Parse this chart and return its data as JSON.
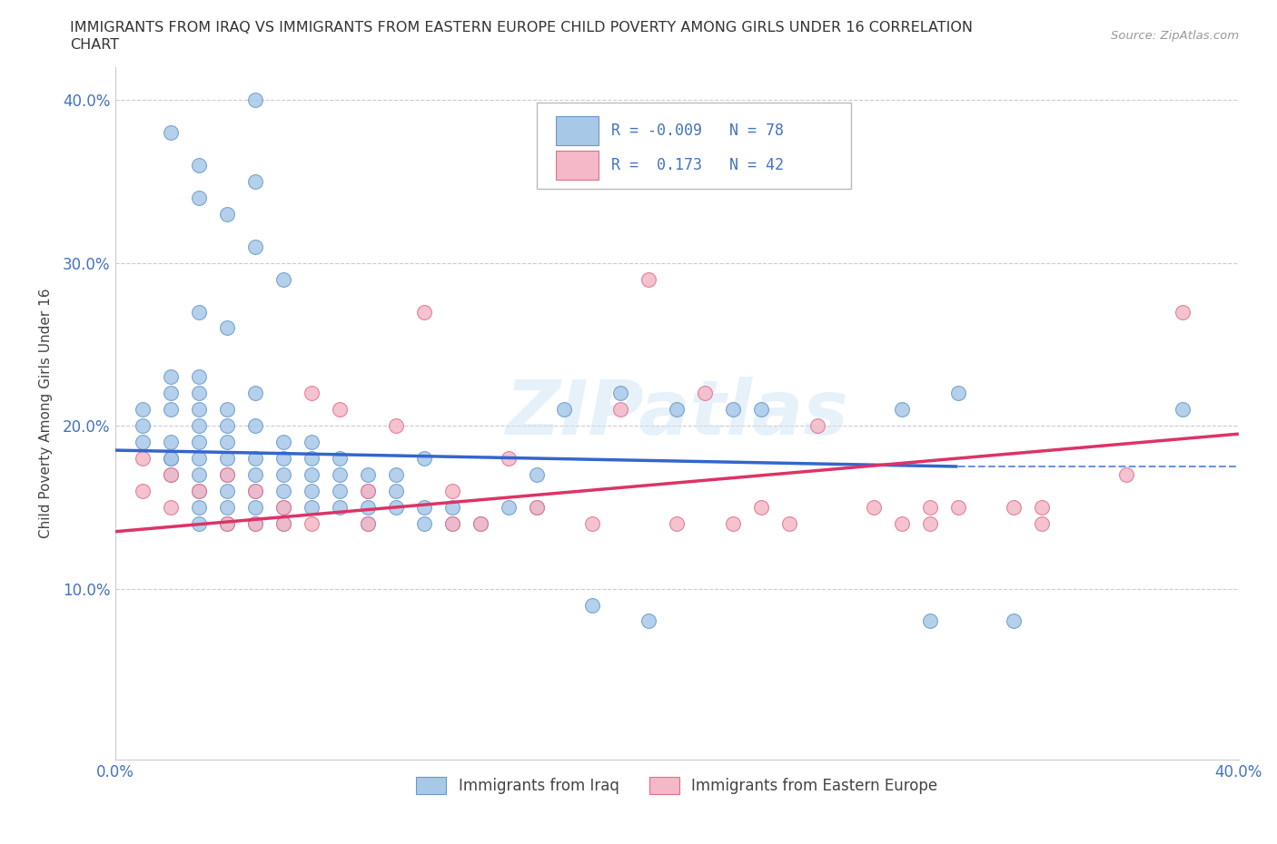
{
  "title_line1": "IMMIGRANTS FROM IRAQ VS IMMIGRANTS FROM EASTERN EUROPE CHILD POVERTY AMONG GIRLS UNDER 16 CORRELATION",
  "title_line2": "CHART",
  "source_text": "Source: ZipAtlas.com",
  "ylabel": "Child Poverty Among Girls Under 16",
  "xlim": [
    0.0,
    0.4
  ],
  "ylim": [
    -0.005,
    0.42
  ],
  "yticks": [
    0.0,
    0.1,
    0.2,
    0.3,
    0.4
  ],
  "ytick_labels": [
    "",
    "10.0%",
    "20.0%",
    "30.0%",
    "40.0%"
  ],
  "xticks": [
    0.0,
    0.1,
    0.2,
    0.3,
    0.4
  ],
  "xtick_labels": [
    "0.0%",
    "",
    "",
    "",
    "40.0%"
  ],
  "iraq_color": "#a8c8e8",
  "iraq_edge_color": "#6699cc",
  "eastern_color": "#f4b8c8",
  "eastern_edge_color": "#e0708a",
  "line_iraq_color": "#3366cc",
  "line_eastern_color": "#dd3366",
  "legend_R_iraq": "-0.009",
  "legend_N_iraq": "78",
  "legend_R_eastern": "0.173",
  "legend_N_eastern": "42",
  "watermark": "ZIPatlas",
  "iraq_x": [
    0.01,
    0.01,
    0.01,
    0.02,
    0.02,
    0.02,
    0.02,
    0.02,
    0.02,
    0.02,
    0.03,
    0.03,
    0.03,
    0.03,
    0.03,
    0.03,
    0.03,
    0.03,
    0.03,
    0.03,
    0.04,
    0.04,
    0.04,
    0.04,
    0.04,
    0.04,
    0.04,
    0.04,
    0.05,
    0.05,
    0.05,
    0.05,
    0.05,
    0.05,
    0.05,
    0.06,
    0.06,
    0.06,
    0.06,
    0.06,
    0.06,
    0.07,
    0.07,
    0.07,
    0.07,
    0.07,
    0.08,
    0.08,
    0.08,
    0.08,
    0.09,
    0.09,
    0.09,
    0.09,
    0.1,
    0.1,
    0.1,
    0.11,
    0.11,
    0.11,
    0.12,
    0.12,
    0.13,
    0.14,
    0.15,
    0.15,
    0.16,
    0.17,
    0.18,
    0.19,
    0.2,
    0.22,
    0.23,
    0.28,
    0.29,
    0.3,
    0.32,
    0.38
  ],
  "iraq_y": [
    0.19,
    0.2,
    0.21,
    0.17,
    0.18,
    0.18,
    0.19,
    0.21,
    0.22,
    0.23,
    0.14,
    0.15,
    0.16,
    0.17,
    0.18,
    0.19,
    0.2,
    0.21,
    0.22,
    0.23,
    0.14,
    0.15,
    0.16,
    0.17,
    0.18,
    0.19,
    0.2,
    0.21,
    0.14,
    0.15,
    0.16,
    0.17,
    0.18,
    0.2,
    0.22,
    0.14,
    0.15,
    0.16,
    0.17,
    0.18,
    0.19,
    0.15,
    0.16,
    0.17,
    0.18,
    0.19,
    0.15,
    0.16,
    0.17,
    0.18,
    0.14,
    0.15,
    0.16,
    0.17,
    0.15,
    0.16,
    0.17,
    0.14,
    0.15,
    0.18,
    0.14,
    0.15,
    0.14,
    0.15,
    0.15,
    0.17,
    0.21,
    0.09,
    0.22,
    0.08,
    0.21,
    0.21,
    0.21,
    0.21,
    0.08,
    0.22,
    0.08,
    0.21
  ],
  "iraq_high_x": [
    0.02,
    0.03,
    0.03,
    0.04,
    0.05,
    0.06,
    0.03,
    0.04,
    0.05,
    0.05
  ],
  "iraq_high_y": [
    0.38,
    0.36,
    0.34,
    0.33,
    0.31,
    0.29,
    0.27,
    0.26,
    0.35,
    0.4
  ],
  "eastern_x": [
    0.01,
    0.01,
    0.02,
    0.02,
    0.03,
    0.04,
    0.04,
    0.05,
    0.05,
    0.06,
    0.06,
    0.07,
    0.07,
    0.08,
    0.09,
    0.09,
    0.1,
    0.11,
    0.12,
    0.12,
    0.13,
    0.14,
    0.15,
    0.17,
    0.18,
    0.19,
    0.2,
    0.21,
    0.22,
    0.23,
    0.24,
    0.25,
    0.27,
    0.28,
    0.29,
    0.29,
    0.3,
    0.32,
    0.33,
    0.33,
    0.36,
    0.38
  ],
  "eastern_y": [
    0.16,
    0.18,
    0.15,
    0.17,
    0.16,
    0.14,
    0.17,
    0.14,
    0.16,
    0.14,
    0.15,
    0.14,
    0.22,
    0.21,
    0.14,
    0.16,
    0.2,
    0.27,
    0.14,
    0.16,
    0.14,
    0.18,
    0.15,
    0.14,
    0.21,
    0.29,
    0.14,
    0.22,
    0.14,
    0.15,
    0.14,
    0.2,
    0.15,
    0.14,
    0.14,
    0.15,
    0.15,
    0.15,
    0.14,
    0.15,
    0.17,
    0.27
  ],
  "iraq_line_x0": 0.0,
  "iraq_line_x1": 0.3,
  "iraq_line_y0": 0.185,
  "iraq_line_y1": 0.175,
  "eastern_line_x0": 0.0,
  "eastern_line_x1": 0.4,
  "eastern_line_y0": 0.135,
  "eastern_line_y1": 0.195,
  "dash_line_x0": 0.3,
  "dash_line_x1": 0.4,
  "dash_line_y": 0.175
}
